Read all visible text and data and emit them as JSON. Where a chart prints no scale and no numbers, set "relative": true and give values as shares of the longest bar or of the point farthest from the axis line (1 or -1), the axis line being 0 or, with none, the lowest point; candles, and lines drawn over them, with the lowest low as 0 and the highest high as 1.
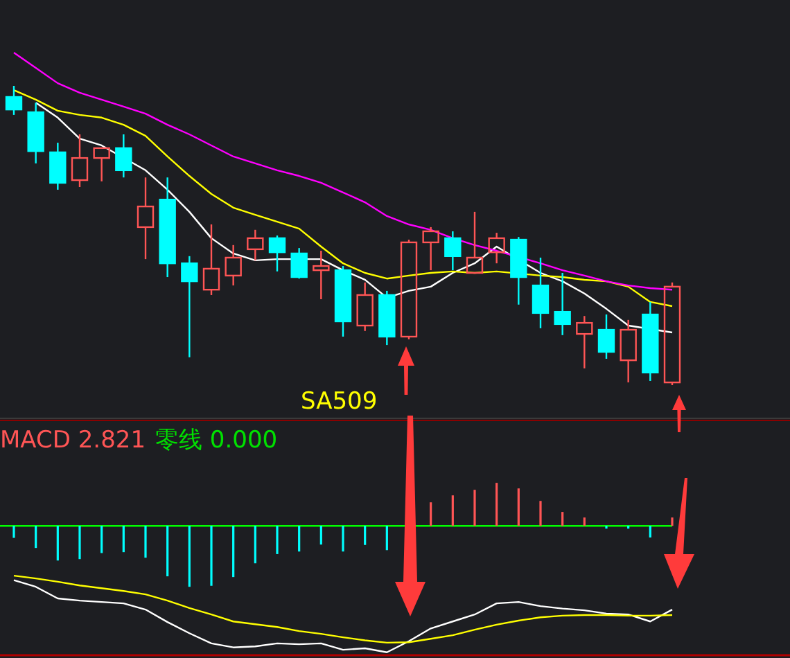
{
  "chart_data": [
    {
      "type": "candlestick",
      "relative": true,
      "annotations": [
        "SA509"
      ],
      "categories": [
        null,
        null,
        null,
        null,
        null,
        null,
        null,
        null,
        null,
        null,
        null,
        null,
        null,
        null,
        null,
        null,
        null,
        null,
        null,
        null,
        null,
        null,
        null,
        null,
        null,
        null,
        null,
        null,
        null,
        null,
        null
      ],
      "ohlc": [
        [
          0.963,
          1,
          0.903,
          0.921
        ],
        [
          0.912,
          0.944,
          0.741,
          0.782
        ],
        [
          0.778,
          0.81,
          0.653,
          0.676
        ],
        [
          0.685,
          0.838,
          0.662,
          0.759
        ],
        [
          0.759,
          0.792,
          0.681,
          0.792
        ],
        [
          0.792,
          0.838,
          0.694,
          0.718
        ],
        [
          0.528,
          0.694,
          0.421,
          0.597
        ],
        [
          0.62,
          0.694,
          0.361,
          0.407
        ],
        [
          0.407,
          0.431,
          0.093,
          0.347
        ],
        [
          0.319,
          0.537,
          0.301,
          0.389
        ],
        [
          0.366,
          0.468,
          0.333,
          0.426
        ],
        [
          0.454,
          0.519,
          0.417,
          0.491
        ],
        [
          0.491,
          0.5,
          0.38,
          0.444
        ],
        [
          0.44,
          0.458,
          0.356,
          0.361
        ],
        [
          0.384,
          0.449,
          0.287,
          0.398
        ],
        [
          0.384,
          0.398,
          0.162,
          0.213
        ],
        [
          0.199,
          0.343,
          0.181,
          0.301
        ],
        [
          0.301,
          0.315,
          0.134,
          0.162
        ],
        [
          0.162,
          0.486,
          0.153,
          0.477
        ],
        [
          0.477,
          0.528,
          0.384,
          0.514
        ],
        [
          0.491,
          0.514,
          0.384,
          0.431
        ],
        [
          0.375,
          0.579,
          0.375,
          0.426
        ],
        [
          0.444,
          0.509,
          0.407,
          0.491
        ],
        [
          0.486,
          0.495,
          0.269,
          0.361
        ],
        [
          0.333,
          0.426,
          0.19,
          0.241
        ],
        [
          0.245,
          0.375,
          0.167,
          0.204
        ],
        [
          0.171,
          0.231,
          0.056,
          0.208
        ],
        [
          0.185,
          0.236,
          0.088,
          0.111
        ],
        [
          0.083,
          0.218,
          0.009,
          0.185
        ],
        [
          0.236,
          0.278,
          0.014,
          0.042
        ],
        [
          0.009,
          0.343,
          0,
          0.329
        ]
      ],
      "colors": [
        "#00ffff",
        "#00ffff",
        "#00ffff",
        "#ff5555",
        "#ff5555",
        "#00ffff",
        "#ff5555",
        "#00ffff",
        "#00ffff",
        "#ff5555",
        "#ff5555",
        "#ff5555",
        "#00ffff",
        "#00ffff",
        "#ff5555",
        "#00ffff",
        "#ff5555",
        "#00ffff",
        "#ff5555",
        "#ff5555",
        "#00ffff",
        "#ff5555",
        "#ff5555",
        "#00ffff",
        "#00ffff",
        "#00ffff",
        "#ff5555",
        "#00ffff",
        "#ff5555",
        "#00ffff",
        "#ff5555"
      ],
      "series": [
        {
          "type": "line",
          "color": "#ffffff",
          "values": [
            null,
            0.944,
            0.894,
            0.824,
            0.801,
            null,
            0.718,
            0.653,
            0.579,
            0.491,
            0.44,
            0.417,
            0.421,
            null,
            0.421,
            0.384,
            0.352,
            0.292,
            0.315,
            0.329,
            0.375,
            0.407,
            0.463,
            null,
            0.375,
            0.347,
            0.306,
            0.255,
            0.199,
            null,
            0.176
          ]
        },
        {
          "type": "line",
          "color": "#ffff00",
          "values": [
            0.986,
            0.954,
            0.917,
            0.903,
            0.894,
            0.87,
            0.833,
            0.764,
            0.699,
            0.639,
            0.593,
            0.569,
            0.546,
            0.523,
            0.463,
            0.407,
            0.375,
            0.356,
            0.366,
            0.375,
            0.38,
            0.375,
            0.38,
            null,
            0.366,
            0.361,
            0.352,
            0.347,
            0.329,
            0.278,
            0.264
          ]
        },
        {
          "type": "line",
          "color": "#ff00ff",
          "values": [
            1.111,
            1.06,
            1.009,
            0.977,
            0.954,
            0.931,
            0.907,
            0.87,
            0.838,
            0.801,
            0.764,
            0.741,
            0.718,
            0.699,
            0.676,
            0.644,
            0.611,
            0.565,
            0.537,
            0.519,
            0.491,
            0.468,
            0.449,
            null,
            0.407,
            0.384,
            0.366,
            0.347,
            0.333,
            0.324,
            0.319
          ]
        }
      ]
    },
    {
      "type": "bar",
      "relative": true,
      "title": "MACD 2.821",
      "annotations": [
        "零线 0.000"
      ],
      "ref_lines": [
        {
          "axis": "y",
          "value": 0,
          "color": "#00ff00"
        }
      ],
      "categories": [
        null,
        null,
        null,
        null,
        null,
        null,
        null,
        null,
        null,
        null,
        null,
        null,
        null,
        null,
        null,
        null,
        null,
        null,
        null,
        null,
        null,
        null,
        null,
        null,
        null,
        null,
        null,
        null,
        null,
        null,
        null
      ],
      "values": [
        -0.095,
        -0.175,
        -0.274,
        -0.263,
        -0.215,
        -0.208,
        -0.252,
        -0.399,
        -0.482,
        -0.474,
        -0.405,
        -0.296,
        -0.223,
        -0.203,
        -0.148,
        -0.203,
        -0.151,
        -0.192,
        0,
        0.186,
        0.241,
        0.285,
        0.34,
        0.296,
        0.197,
        0.11,
        0.066,
        -0.022,
        -0.022,
        -0.092,
        0.066
      ],
      "colors": [
        "#00ffff",
        "#00ffff",
        "#00ffff",
        "#00ffff",
        "#00ffff",
        "#00ffff",
        "#00ffff",
        "#00ffff",
        "#00ffff",
        "#00ffff",
        "#00ffff",
        "#00ffff",
        "#00ffff",
        "#00ffff",
        "#00ffff",
        "#00ffff",
        "#00ffff",
        "#00ffff",
        "#ff5555",
        "#ff5555",
        "#ff5555",
        "#ff5555",
        "#ff5555",
        "#ff5555",
        "#ff5555",
        "#ff5555",
        "#ff5555",
        "#00ffff",
        "#00ffff",
        "#00ffff",
        "#ff5555"
      ],
      "series": [
        {
          "type": "line",
          "color": "#ffffff",
          "values": [
            -0.43,
            -0.482,
            -0.574,
            -0.591,
            -0.602,
            -0.613,
            -0.662,
            -0.761,
            -0.849,
            -0.929,
            -0.961,
            -0.953,
            -0.929,
            -0.936,
            -0.929,
            -0.98,
            -0.968,
            -1,
            -0.912,
            -0.811,
            -0.756,
            -0.701,
            -0.613,
            -0.602,
            -0.635,
            -0.654,
            -0.668,
            -0.694,
            -0.701,
            -0.756,
            -0.662
          ]
        },
        {
          "type": "line",
          "color": "#ffff00",
          "values": [
            -0.394,
            -0.416,
            -0.442,
            -0.471,
            -0.493,
            -0.515,
            -0.542,
            -0.591,
            -0.65,
            -0.701,
            -0.756,
            -0.778,
            -0.8,
            -0.832,
            -0.854,
            -0.881,
            -0.905,
            -0.924,
            -0.92,
            -0.893,
            -0.865,
            -0.821,
            -0.781,
            -0.749,
            -0.723,
            -0.71,
            -0.705,
            -0.705,
            -0.71,
            -0.71,
            -0.705
          ]
        }
      ]
    }
  ]
}
